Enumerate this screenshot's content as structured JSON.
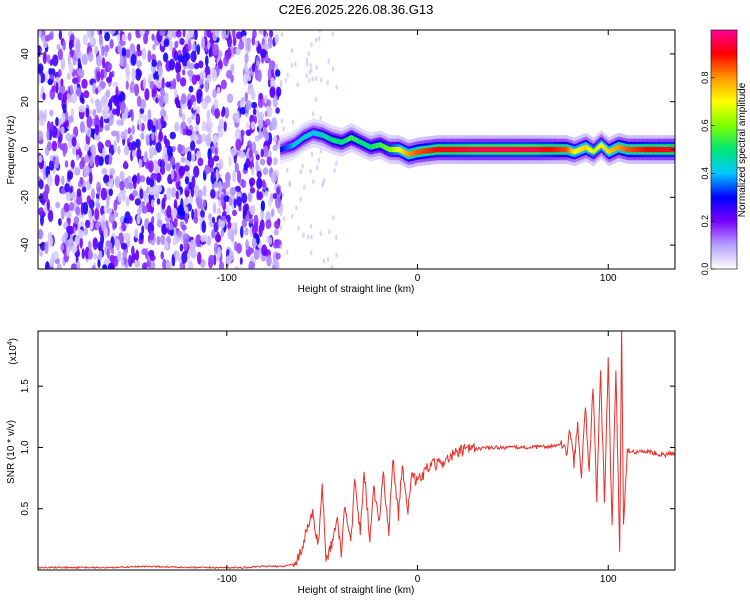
{
  "title": "C2E6.2025.226.08.36.G13",
  "chart_data": [
    {
      "type": "heatmap",
      "xlabel": "Height of straight line (km)",
      "ylabel": "Frequency (Hz)",
      "xlim": [
        -199,
        135
      ],
      "ylim": [
        -50,
        50
      ],
      "x_ticks": [
        -100,
        0,
        100
      ],
      "x_tick_labels": [
        "-100",
        "0",
        "100"
      ],
      "y_ticks": [
        -40,
        -20,
        0,
        20,
        40
      ],
      "y_tick_labels": [
        "-40",
        "-20",
        "0",
        "20",
        "40"
      ],
      "noise_region_x": [
        -199,
        -72
      ],
      "signal_track": {
        "x": [
          -72,
          -65,
          -60,
          -55,
          -50,
          -45,
          -40,
          -35,
          -30,
          -25,
          -20,
          -15,
          -10,
          -5,
          0,
          10,
          20,
          30,
          40,
          50,
          60,
          70,
          78,
          82,
          88,
          92,
          96,
          100,
          105,
          110,
          120,
          135
        ],
        "freq": [
          0,
          2,
          5,
          7,
          6,
          4,
          3,
          5,
          3,
          1,
          2,
          0,
          0,
          -2,
          -1,
          0,
          0,
          0,
          0,
          0,
          0,
          0,
          0,
          -1,
          1,
          -1,
          2,
          -1,
          1,
          0,
          0,
          0
        ],
        "amplitude": [
          0.3,
          0.4,
          0.45,
          0.4,
          0.45,
          0.5,
          0.5,
          0.55,
          0.5,
          0.5,
          0.55,
          0.6,
          0.7,
          0.8,
          0.85,
          0.9,
          0.92,
          0.95,
          0.95,
          0.95,
          0.95,
          0.9,
          0.85,
          0.7,
          0.75,
          0.65,
          0.7,
          0.75,
          0.8,
          0.85,
          0.9,
          0.92
        ]
      },
      "grid": false,
      "colorbar": {
        "label": "Normalized spectral amplitude",
        "range": [
          0,
          1
        ],
        "ticks": [
          0.0,
          0.2,
          0.4,
          0.6,
          0.8
        ],
        "tick_labels": [
          "0.0",
          "0.2",
          "0.4",
          "0.6",
          "0.8"
        ],
        "colors": [
          "#ffffff",
          "#b7a0ff",
          "#7a00ff",
          "#0000ff",
          "#00c8ff",
          "#00e676",
          "#7cff00",
          "#ffff00",
          "#ff9800",
          "#ff0000",
          "#ff0099"
        ]
      }
    },
    {
      "type": "line",
      "xlabel": "Height of straight line (km)",
      "ylabel": "SNR (10 * v/v)",
      "multiplier_label": "(x10",
      "multiplier_exp": "4",
      "xlim": [
        -199,
        135
      ],
      "ylim": [
        0,
        1.95
      ],
      "x_ticks": [
        -100,
        0,
        100
      ],
      "x_tick_labels": [
        "-100",
        "0",
        "100"
      ],
      "y_ticks": [
        0.5,
        1.0,
        1.5
      ],
      "y_tick_labels": [
        "0.5",
        "1.0",
        "1.5"
      ],
      "grid": false,
      "color": "#e8302a",
      "series": [
        {
          "x": [
            -199,
            -180,
            -160,
            -140,
            -120,
            -100,
            -90,
            -80,
            -70,
            -65,
            -62,
            -60,
            -58,
            -55,
            -52,
            -50,
            -48,
            -45,
            -42,
            -40,
            -38,
            -35,
            -33,
            -30,
            -28,
            -25,
            -23,
            -20,
            -18,
            -15,
            -13,
            -10,
            -8,
            -5,
            -3,
            0,
            3,
            6,
            10,
            15,
            20,
            25,
            30,
            40,
            50,
            60,
            70,
            75,
            78,
            80,
            82,
            84,
            86,
            88,
            90,
            92,
            94,
            96,
            98,
            100,
            102,
            104,
            106,
            107,
            108,
            110,
            115,
            120,
            125,
            130,
            135
          ],
          "y": [
            0.02,
            0.02,
            0.02,
            0.03,
            0.02,
            0.02,
            0.02,
            0.03,
            0.03,
            0.05,
            0.12,
            0.2,
            0.35,
            0.45,
            0.2,
            0.7,
            0.08,
            0.22,
            0.4,
            0.15,
            0.55,
            0.2,
            0.72,
            0.3,
            0.82,
            0.25,
            0.68,
            0.4,
            0.8,
            0.3,
            0.92,
            0.45,
            0.85,
            0.5,
            0.75,
            0.72,
            0.78,
            0.85,
            0.86,
            0.9,
            0.95,
            0.98,
            0.99,
            1.0,
            1.0,
            1.0,
            1.01,
            1.02,
            0.95,
            1.15,
            0.85,
            1.2,
            0.75,
            1.35,
            0.8,
            1.5,
            0.6,
            1.62,
            0.55,
            1.7,
            0.35,
            1.65,
            0.12,
            1.98,
            0.35,
            0.98,
            0.96,
            0.97,
            0.95,
            0.94,
            0.96
          ]
        }
      ]
    }
  ]
}
